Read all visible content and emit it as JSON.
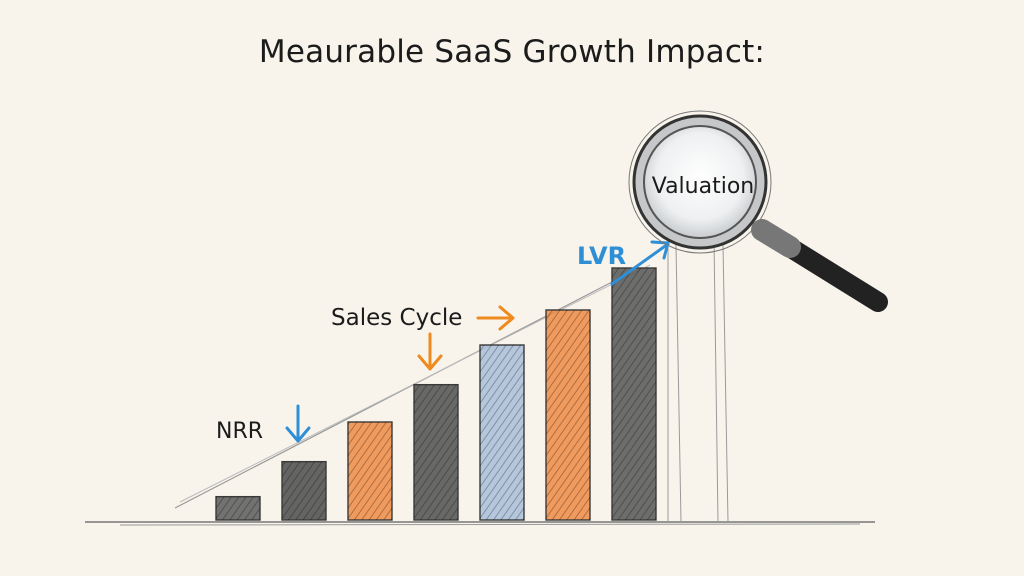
{
  "title": "Meaurable SaaS Growth Impact:",
  "chart_data": {
    "type": "bar",
    "categories": [
      "",
      "",
      "",
      "",
      "",
      "",
      ""
    ],
    "values": [
      1,
      2.5,
      4.2,
      5.8,
      7.5,
      9.0,
      10.8
    ],
    "bar_colors": [
      "#5b5b5b",
      "#4a4a4a",
      "#ef8a44",
      "#4f4f4f",
      "#a9bedb",
      "#ef8a44",
      "#555555"
    ],
    "ylim": [
      0,
      12
    ],
    "annotations": [
      {
        "label": "NRR",
        "arrow": "down",
        "color": "#2f8fd6"
      },
      {
        "label": "Sales Cycle",
        "arrow": "down",
        "color": "#ef8a1e"
      },
      {
        "label": "Sales Cycle",
        "arrow": "right",
        "color": "#ef8a1e"
      },
      {
        "label": "LVR",
        "arrow": "up-right",
        "color": "#2f8fd6"
      },
      {
        "label": "Valuation",
        "icon": "magnifier-icon"
      }
    ]
  }
}
